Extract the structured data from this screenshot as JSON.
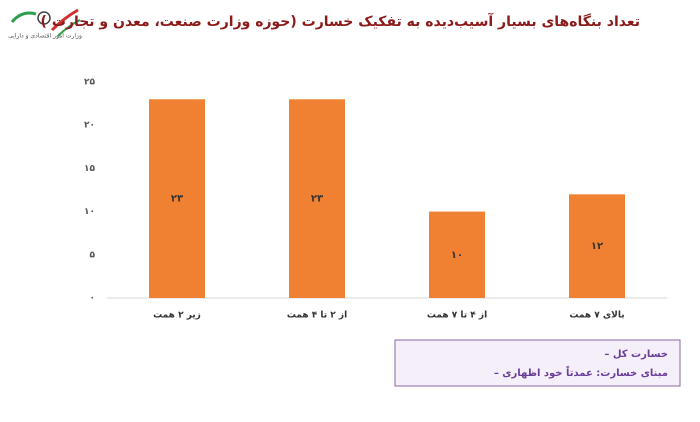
{
  "header": {
    "logo_text": "وزارت امور اقتصادی و دارایی"
  },
  "chart_data": {
    "type": "bar",
    "title": "تعداد بنگاه‌های بسیار آسیب‌دیده به تفکیک خسارت (حوزه وزارت صنعت، معدن و تجارت )",
    "categories": [
      "زیر ۲ همت",
      "از ۲ تا ۴ همت",
      "از ۴ تا ۷ همت",
      "بالای ۷ همت"
    ],
    "values": [
      23,
      23,
      10,
      12
    ],
    "value_labels": [
      "۲۳",
      "۲۳",
      "۱۰",
      "۱۲"
    ],
    "color": "#f08132",
    "ylim": [
      0,
      25
    ],
    "yticks": [
      {
        "value": 0,
        "label": "۰"
      },
      {
        "value": 5,
        "label": "۵"
      },
      {
        "value": 10,
        "label": "۱۰"
      },
      {
        "value": 15,
        "label": "۱۵"
      },
      {
        "value": 20,
        "label": "۲۰"
      },
      {
        "value": 25,
        "label": "۲۵"
      }
    ],
    "grid": false,
    "annotations": [
      "– خسارت کل",
      "– مبنای خسارت: عمدتاً خود اظهاری"
    ]
  }
}
